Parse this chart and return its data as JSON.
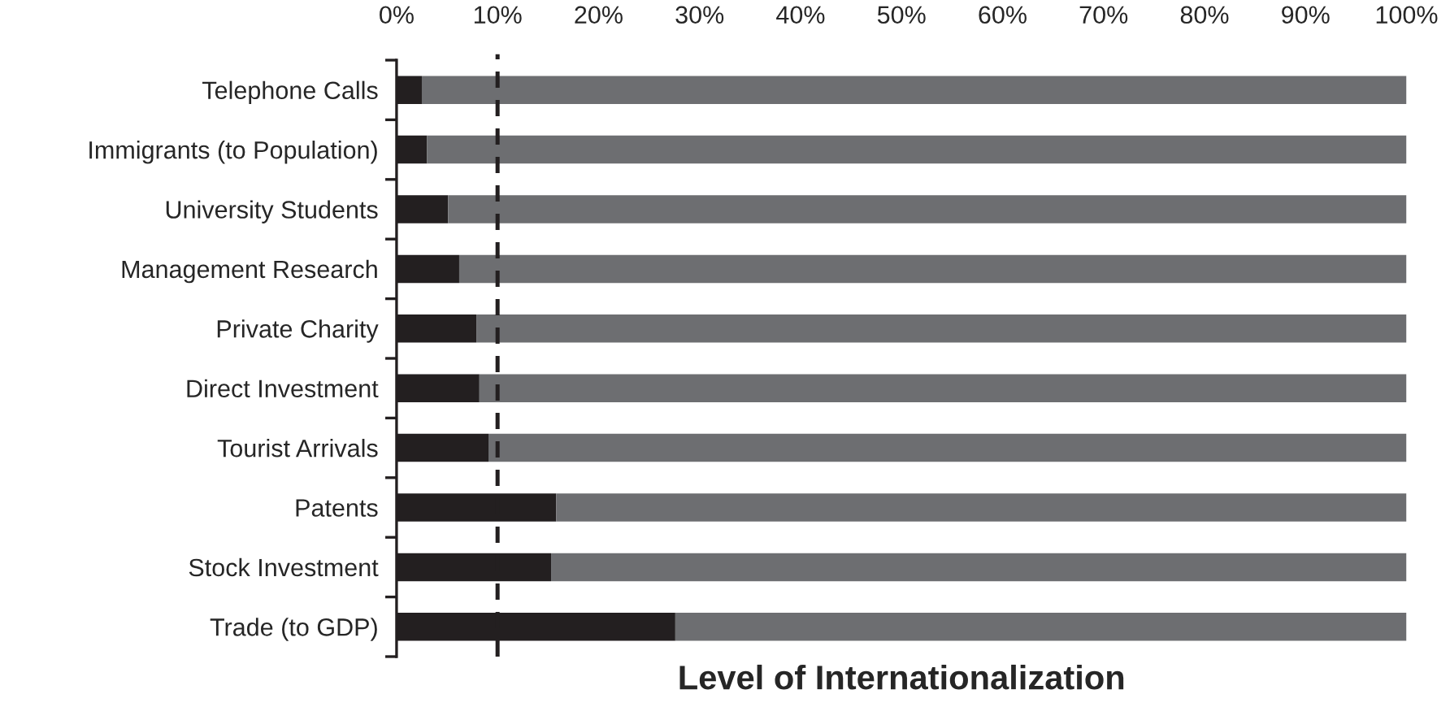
{
  "chart_data": {
    "type": "bar",
    "orientation": "horizontal",
    "stacked": true,
    "categories": [
      "Telephone Calls",
      "Immigrants (to Population)",
      "University Students",
      "Management Research",
      "Private Charity",
      "Direct Investment",
      "Tourist Arrivals",
      "Patents",
      "Stock Investment",
      "Trade (to GDP)"
    ],
    "series": [
      {
        "color": "#231f20",
        "values": [
          2.5,
          3,
          5.1,
          6.2,
          7.9,
          8.2,
          9.1,
          15.8,
          15.3,
          27.6
        ]
      },
      {
        "color": "#6d6e71",
        "values": [
          97.5,
          97,
          94.9,
          93.8,
          92.1,
          91.8,
          90.9,
          84.2,
          84.7,
          72.4
        ]
      }
    ],
    "xlim": [
      0,
      100
    ],
    "xticks": [
      {
        "value": 0,
        "label": "0%"
      },
      {
        "value": 10,
        "label": "10%"
      },
      {
        "value": 20,
        "label": "20%"
      },
      {
        "value": 30,
        "label": "30%"
      },
      {
        "value": 40,
        "label": "40%"
      },
      {
        "value": 50,
        "label": "50%"
      },
      {
        "value": 60,
        "label": "60%"
      },
      {
        "value": 70,
        "label": "70%"
      },
      {
        "value": 80,
        "label": "80%"
      },
      {
        "value": 90,
        "label": "90%"
      },
      {
        "value": 100,
        "label": "100%"
      }
    ],
    "xlabel": "Level of Internationalization",
    "ref_lines": [
      {
        "axis": "x",
        "value": 10,
        "color": "#231f20",
        "line_style": "dashed"
      }
    ],
    "grid": false,
    "legend": false
  }
}
